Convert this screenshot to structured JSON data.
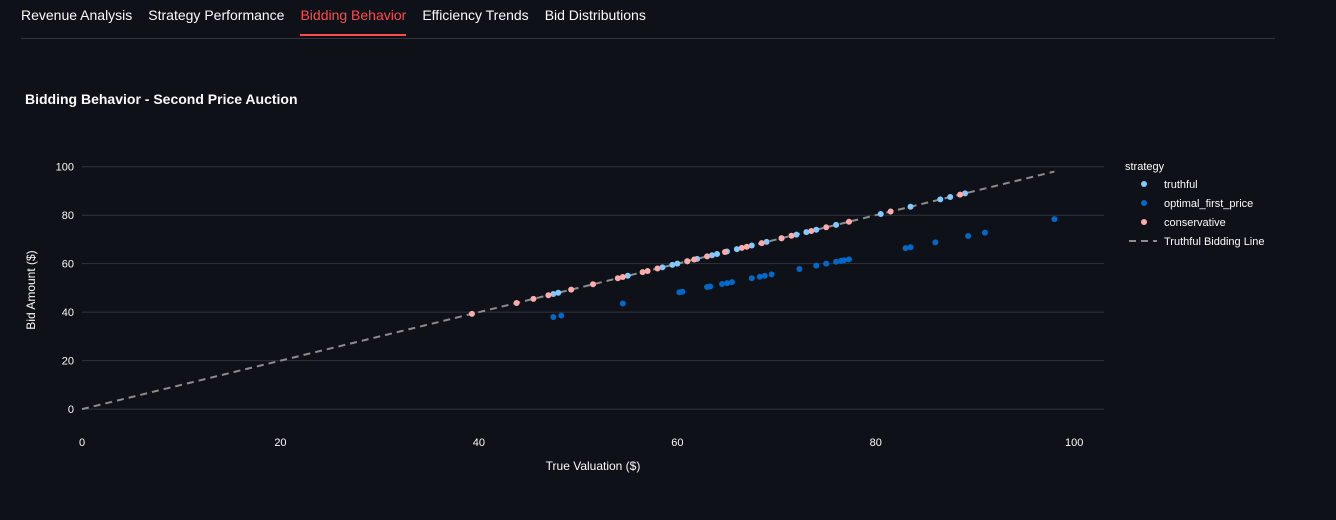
{
  "tabs": [
    {
      "label": "Revenue Analysis",
      "active": false
    },
    {
      "label": "Strategy Performance",
      "active": false
    },
    {
      "label": "Bidding Behavior",
      "active": true
    },
    {
      "label": "Efficiency Trends",
      "active": false
    },
    {
      "label": "Bid Distributions",
      "active": false
    }
  ],
  "colors": {
    "background": "#0e1117",
    "grid": "#31333f",
    "text": "#fafafa",
    "accent": "#ff4b4b",
    "truthful": "#83c9ff",
    "optimal_first_price": "#0068c9",
    "conservative": "#ffabab",
    "truthful_line": "#8c8c8c"
  },
  "chart_data": {
    "type": "scatter",
    "title": "Bidding Behavior - Second Price Auction",
    "xlabel": "True Valuation ($)",
    "ylabel": "Bid Amount ($)",
    "xlim": [
      0,
      103
    ],
    "ylim": [
      -2,
      104
    ],
    "x_ticks": [
      0,
      20,
      40,
      60,
      80,
      100
    ],
    "y_ticks": [
      0,
      20,
      40,
      60,
      80,
      100
    ],
    "grid": true,
    "legend_title": "strategy",
    "legend_position": "right",
    "series": [
      {
        "name": "truthful",
        "color_key": "truthful",
        "x": [
          47.5,
          48.0,
          55.0,
          58.5,
          59.5,
          60.0,
          61.0,
          62.0,
          63.5,
          64.0,
          65.0,
          66.0,
          67.5,
          69.0,
          70.5,
          72.0,
          73.0,
          74.0,
          76.0,
          80.5,
          83.5,
          86.5,
          87.5,
          89.0
        ],
        "y": [
          47.5,
          48.0,
          55.0,
          58.5,
          59.5,
          60.0,
          61.0,
          62.0,
          63.5,
          64.0,
          65.0,
          66.0,
          67.5,
          69.0,
          70.5,
          72.0,
          73.0,
          74.0,
          76.0,
          80.5,
          83.5,
          86.5,
          87.5,
          89.0
        ]
      },
      {
        "name": "optimal_first_price",
        "color_key": "optimal_first_price",
        "x": [
          47.5,
          48.3,
          54.5,
          60.2,
          60.5,
          63.0,
          63.3,
          64.5,
          65.0,
          65.5,
          67.5,
          68.3,
          68.8,
          69.5,
          72.3,
          74.0,
          75.0,
          76.0,
          76.5,
          76.8,
          77.3,
          83.0,
          83.5,
          86.0,
          89.3,
          91.0,
          98.0
        ],
        "y": [
          38.0,
          38.6,
          43.6,
          48.2,
          48.4,
          50.4,
          50.6,
          51.6,
          52.0,
          52.4,
          54.0,
          54.6,
          55.0,
          55.6,
          57.8,
          59.2,
          60.0,
          60.8,
          61.2,
          61.4,
          61.8,
          66.4,
          66.8,
          68.8,
          71.4,
          72.8,
          78.4
        ]
      },
      {
        "name": "conservative",
        "color_key": "conservative",
        "x": [
          39.3,
          43.8,
          45.5,
          47.0,
          49.3,
          51.5,
          54.0,
          54.5,
          56.5,
          57.0,
          58.0,
          61.0,
          61.7,
          63.0,
          64.8,
          66.5,
          67.0,
          68.5,
          70.5,
          71.5,
          73.5,
          75.0,
          77.3,
          81.5,
          88.5
        ],
        "y": [
          39.3,
          43.8,
          45.5,
          47.0,
          49.3,
          51.5,
          54.0,
          54.5,
          56.5,
          57.0,
          58.0,
          61.0,
          61.7,
          63.0,
          64.8,
          66.5,
          67.0,
          68.5,
          70.5,
          71.5,
          73.5,
          75.0,
          77.3,
          81.5,
          88.5
        ]
      }
    ],
    "reference_line": {
      "name": "Truthful Bidding Line",
      "color_key": "truthful_line",
      "dash": true,
      "x": [
        0,
        98
      ],
      "y": [
        0,
        98
      ]
    }
  }
}
